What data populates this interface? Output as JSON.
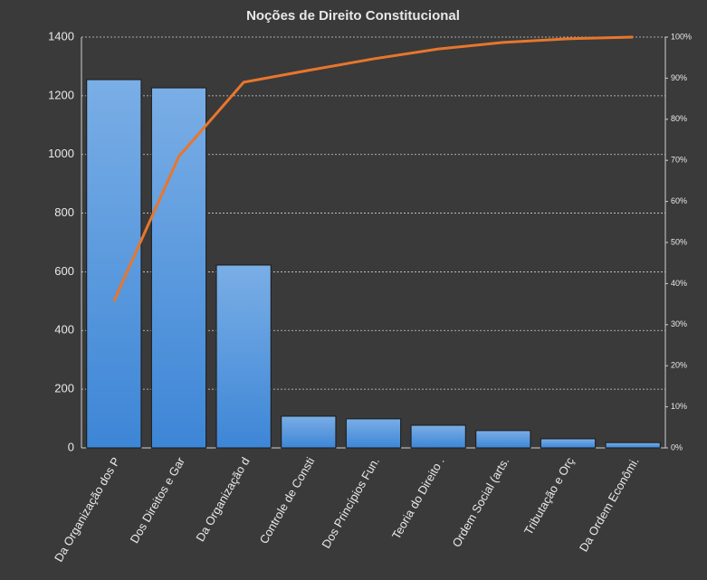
{
  "chart_data": {
    "type": "bar",
    "title": "Noções de Direito  Constitucional",
    "categories": [
      "Da Organização dos P",
      "Dos Direitos e Gar",
      "Da Organização d",
      "Controle de Consti",
      "Dos Princípios Fun.",
      "Teoria do Direito  .",
      "Ordem Social (arts.",
      "Tributação e Orç",
      "Da Ordem Econômi."
    ],
    "series": [
      {
        "color": "#4a90d9",
        "values": [
          1255,
          1227,
          623,
          108,
          99,
          77,
          59,
          31,
          18
        ]
      },
      {
        "type": "line",
        "axis": "y2",
        "color": "#e8762d",
        "values": [
          35.7,
          70.9,
          89,
          91.9,
          94.7,
          97.1,
          98.7,
          99.6,
          100
        ]
      }
    ],
    "ylim": [
      0,
      1400
    ],
    "yticks": [
      0,
      200,
      400,
      600,
      800,
      1000,
      1200,
      1400
    ],
    "y2lim": [
      0,
      100
    ],
    "y2ticks": [
      {
        "value": 0,
        "label": "0%"
      },
      {
        "value": 10,
        "label": "10%"
      },
      {
        "value": 20,
        "label": "20%"
      },
      {
        "value": 30,
        "label": "30%"
      },
      {
        "value": 40,
        "label": "40%"
      },
      {
        "value": 50,
        "label": "50%"
      },
      {
        "value": 60,
        "label": "60%"
      },
      {
        "value": 70,
        "label": "70%"
      },
      {
        "value": 80,
        "label": "80%"
      },
      {
        "value": 90,
        "label": "90%"
      },
      {
        "value": 100,
        "label": "100%"
      }
    ],
    "grid": true
  }
}
